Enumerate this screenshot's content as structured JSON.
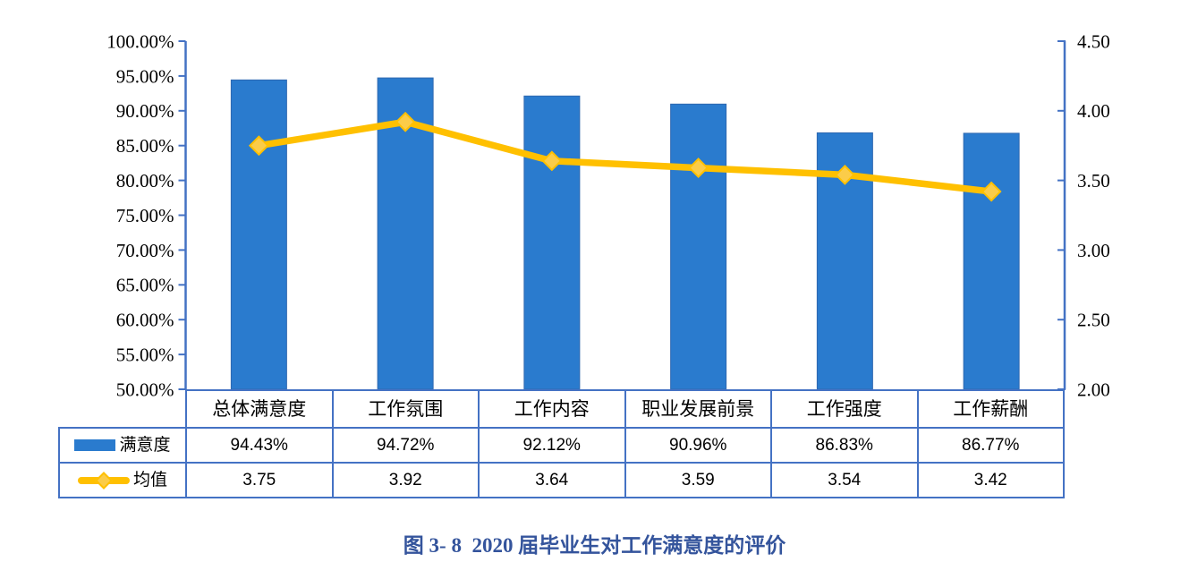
{
  "caption": "图 3- 8  2020 届毕业生对工作满意度的评价",
  "colors": {
    "bar": "#2A7BCE",
    "line": "#FFC000",
    "marker_fill": "#FBCC49",
    "axis": "#4472C4",
    "caption": "#34549C",
    "text": "#000000"
  },
  "chart_data": {
    "type": "bar",
    "subtype": "bar+line combo with data table legend",
    "categories": [
      "总体满意度",
      "工作氛围",
      "工作内容",
      "职业发展前景",
      "工作强度",
      "工作薪酬"
    ],
    "series": [
      {
        "name": "满意度",
        "type": "bar",
        "axis": "left",
        "values": [
          94.43,
          94.72,
          92.12,
          90.96,
          86.83,
          86.77
        ],
        "labels": [
          "94.43%",
          "94.72%",
          "92.12%",
          "90.96%",
          "86.83%",
          "86.77%"
        ]
      },
      {
        "name": "均值",
        "type": "line",
        "axis": "right",
        "values": [
          3.75,
          3.92,
          3.64,
          3.59,
          3.54,
          3.42
        ],
        "labels": [
          "3.75",
          "3.92",
          "3.64",
          "3.59",
          "3.54",
          "3.42"
        ]
      }
    ],
    "left_axis": {
      "min": 50,
      "max": 100,
      "step": 5,
      "tick_labels": [
        "100.00%",
        "95.00%",
        "90.00%",
        "85.00%",
        "80.00%",
        "75.00%",
        "70.00%",
        "65.00%",
        "60.00%",
        "55.00%",
        "50.00%"
      ]
    },
    "right_axis": {
      "min": 2.0,
      "max": 4.5,
      "step": 0.5,
      "tick_labels": [
        "4.50",
        "4.00",
        "3.50",
        "3.00",
        "2.50",
        "2.00"
      ]
    },
    "grid": false,
    "legend_position": "table-left",
    "title": "图 3- 8  2020 届毕业生对工作满意度的评价"
  },
  "legend_icons": {
    "bar_series": "blue-bar-swatch-icon",
    "line_series": "yellow-line-diamond-swatch-icon"
  }
}
